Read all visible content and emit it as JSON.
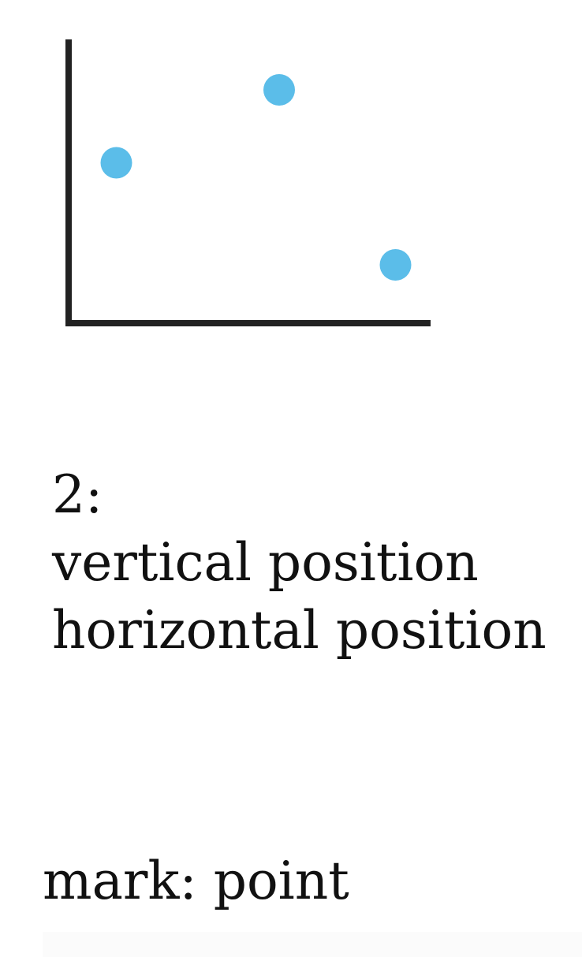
{
  "chart_data": {
    "type": "scatter",
    "x": [
      0.25,
      0.6,
      0.85
    ],
    "y": [
      0.55,
      0.8,
      0.2
    ],
    "xlim": [
      0,
      1
    ],
    "ylim": [
      0,
      1
    ],
    "title": "",
    "xlabel": "",
    "ylabel": "",
    "grid": false,
    "point_color": "#5bbde9",
    "axis_color": "#222222"
  },
  "channels": {
    "count": "2:",
    "items": [
      "vertical position",
      "horizontal position"
    ]
  },
  "mark": {
    "label": "mark: point"
  }
}
